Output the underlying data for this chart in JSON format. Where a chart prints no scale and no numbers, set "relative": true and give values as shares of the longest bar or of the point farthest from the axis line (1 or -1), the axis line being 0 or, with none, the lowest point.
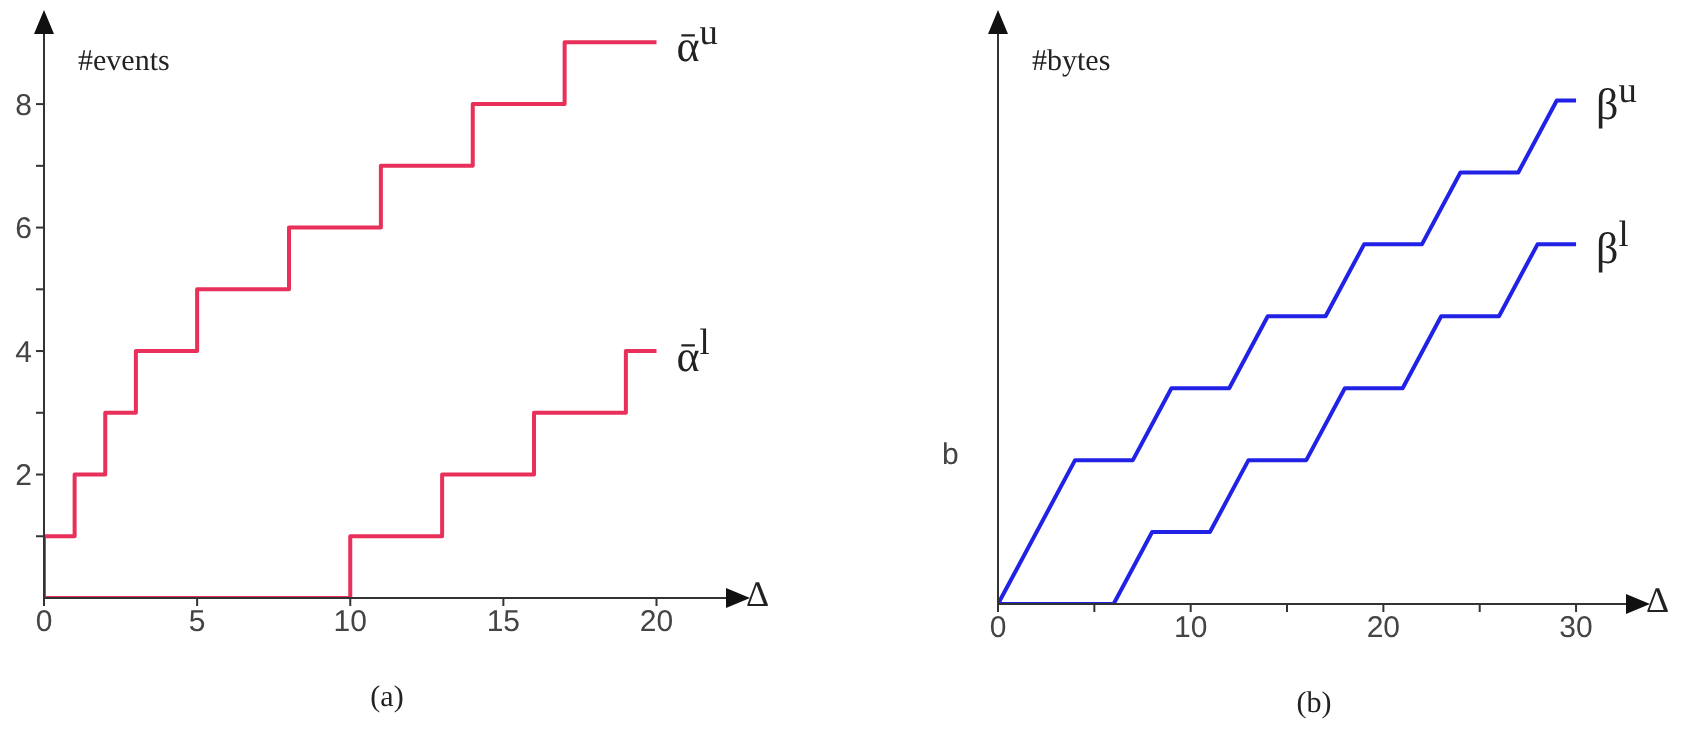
{
  "chart_data": [
    {
      "type": "step",
      "title": "(a)",
      "xlabel": "Δ",
      "ylabel": "#events",
      "xlim": [
        0,
        22.4
      ],
      "ylim": [
        0,
        9.2
      ],
      "xticks": [
        0,
        5,
        10,
        15,
        20
      ],
      "yticks": [
        {
          "value": 1,
          "label": null
        },
        2,
        {
          "value": 3,
          "label": null
        },
        4,
        {
          "value": 5,
          "label": null
        },
        6,
        {
          "value": 7,
          "label": null
        },
        8
      ],
      "series": [
        {
          "name": "ᾱ$^{u}$",
          "color": "#e8305a",
          "x": [
            0,
            0,
            1,
            2,
            3,
            5,
            8,
            11,
            14,
            17,
            20
          ],
          "values": [
            0,
            1,
            2,
            3,
            4,
            5,
            6,
            7,
            8,
            9,
            9
          ]
        },
        {
          "name": "ᾱ$^{l}$",
          "color": "#e8305a",
          "x": [
            0,
            10,
            13,
            16,
            19,
            20
          ],
          "values": [
            0,
            1,
            2,
            3,
            4,
            4
          ]
        }
      ]
    },
    {
      "type": "line",
      "title": "(b)",
      "xlabel": "Δ",
      "ylabel": "#bytes",
      "relative": true,
      "xlim": [
        0,
        32.8
      ],
      "xticks": [
        0,
        {
          "value": 5,
          "label": null
        },
        10,
        {
          "value": 15,
          "label": null
        },
        20,
        {
          "value": 25,
          "label": null
        },
        30
      ],
      "annotations": [
        "b"
      ],
      "series": [
        {
          "name": "β$^{u}$",
          "color": "#2222e6",
          "x": [
            0,
            4,
            7,
            9,
            12,
            14,
            17,
            19,
            22,
            24,
            27,
            29,
            30
          ],
          "values": [
            0,
            0.2857,
            0.2857,
            0.4286,
            0.4286,
            0.5714,
            0.5714,
            0.7143,
            0.7143,
            0.8571,
            0.8571,
            1,
            1
          ]
        },
        {
          "name": "β$^{l}$",
          "color": "#2222e6",
          "x": [
            0,
            6,
            8,
            11,
            13,
            16,
            18,
            21,
            23,
            26,
            28,
            30
          ],
          "values": [
            0,
            0,
            0.1429,
            0.1429,
            0.2857,
            0.2857,
            0.4286,
            0.4286,
            0.5714,
            0.5714,
            0.7143,
            0.7143
          ]
        }
      ]
    }
  ]
}
